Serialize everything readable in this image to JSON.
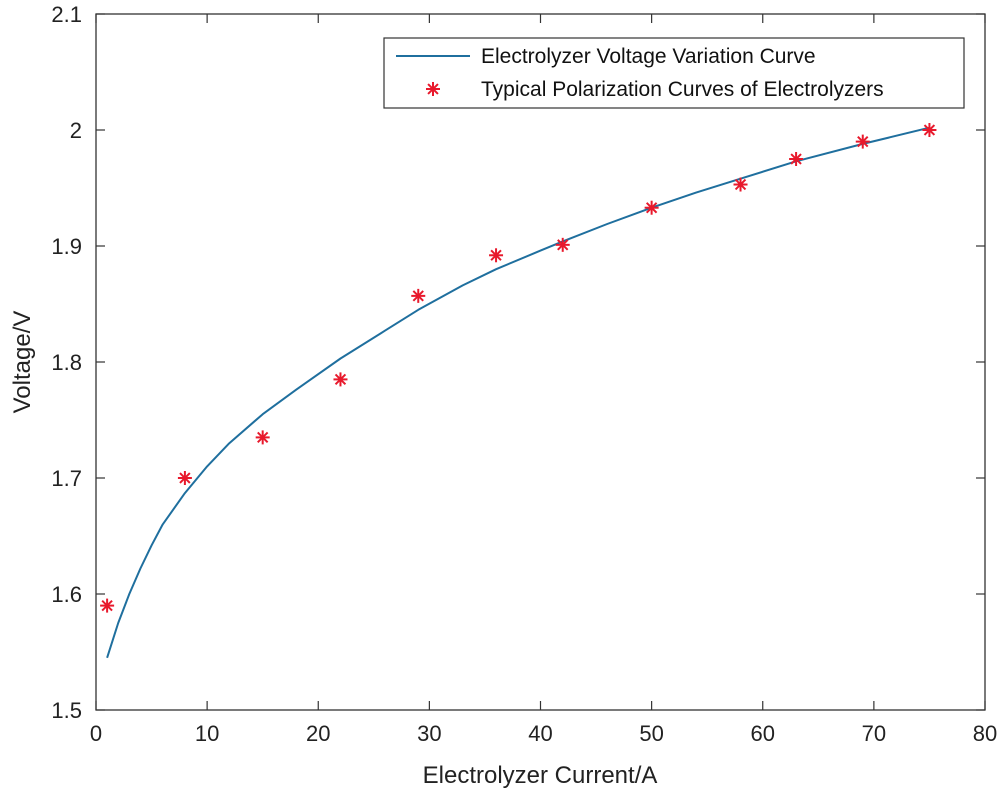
{
  "chart_data": {
    "type": "line",
    "title": "",
    "xlabel": "Electrolyzer Current/A",
    "ylabel": "Voltage/V",
    "xlim": [
      0,
      80
    ],
    "ylim": [
      1.5,
      2.1
    ],
    "xticks": [
      "0",
      "10",
      "20",
      "30",
      "40",
      "50",
      "60",
      "70",
      "80"
    ],
    "yticks": [
      "1.5",
      "1.6",
      "1.7",
      "1.8",
      "1.9",
      "2",
      "2.1"
    ],
    "grid": false,
    "legend_position": "top-right",
    "series": [
      {
        "name": "Electrolyzer Voltage Variation Curve",
        "kind": "line",
        "color": "#1f6f9e",
        "x": [
          1,
          2,
          3,
          4,
          5,
          6,
          8,
          10,
          12,
          15,
          18,
          22,
          26,
          29,
          33,
          36,
          40,
          42,
          46,
          50,
          54,
          58,
          63,
          69,
          75
        ],
        "y": [
          1.545,
          1.575,
          1.6,
          1.622,
          1.642,
          1.66,
          1.687,
          1.71,
          1.73,
          1.755,
          1.776,
          1.803,
          1.827,
          1.845,
          1.866,
          1.88,
          1.896,
          1.904,
          1.919,
          1.933,
          1.946,
          1.958,
          1.973,
          1.988,
          2.002
        ]
      },
      {
        "name": "Typical Polarization Curves of Electrolyzers",
        "kind": "scatter",
        "marker": "asterisk",
        "color": "#e8192c",
        "x": [
          1,
          8,
          15,
          22,
          29,
          36,
          42,
          50,
          58,
          63,
          69,
          75
        ],
        "y": [
          1.59,
          1.7,
          1.735,
          1.785,
          1.857,
          1.892,
          1.901,
          1.933,
          1.953,
          1.975,
          1.99,
          2.0
        ]
      }
    ]
  }
}
